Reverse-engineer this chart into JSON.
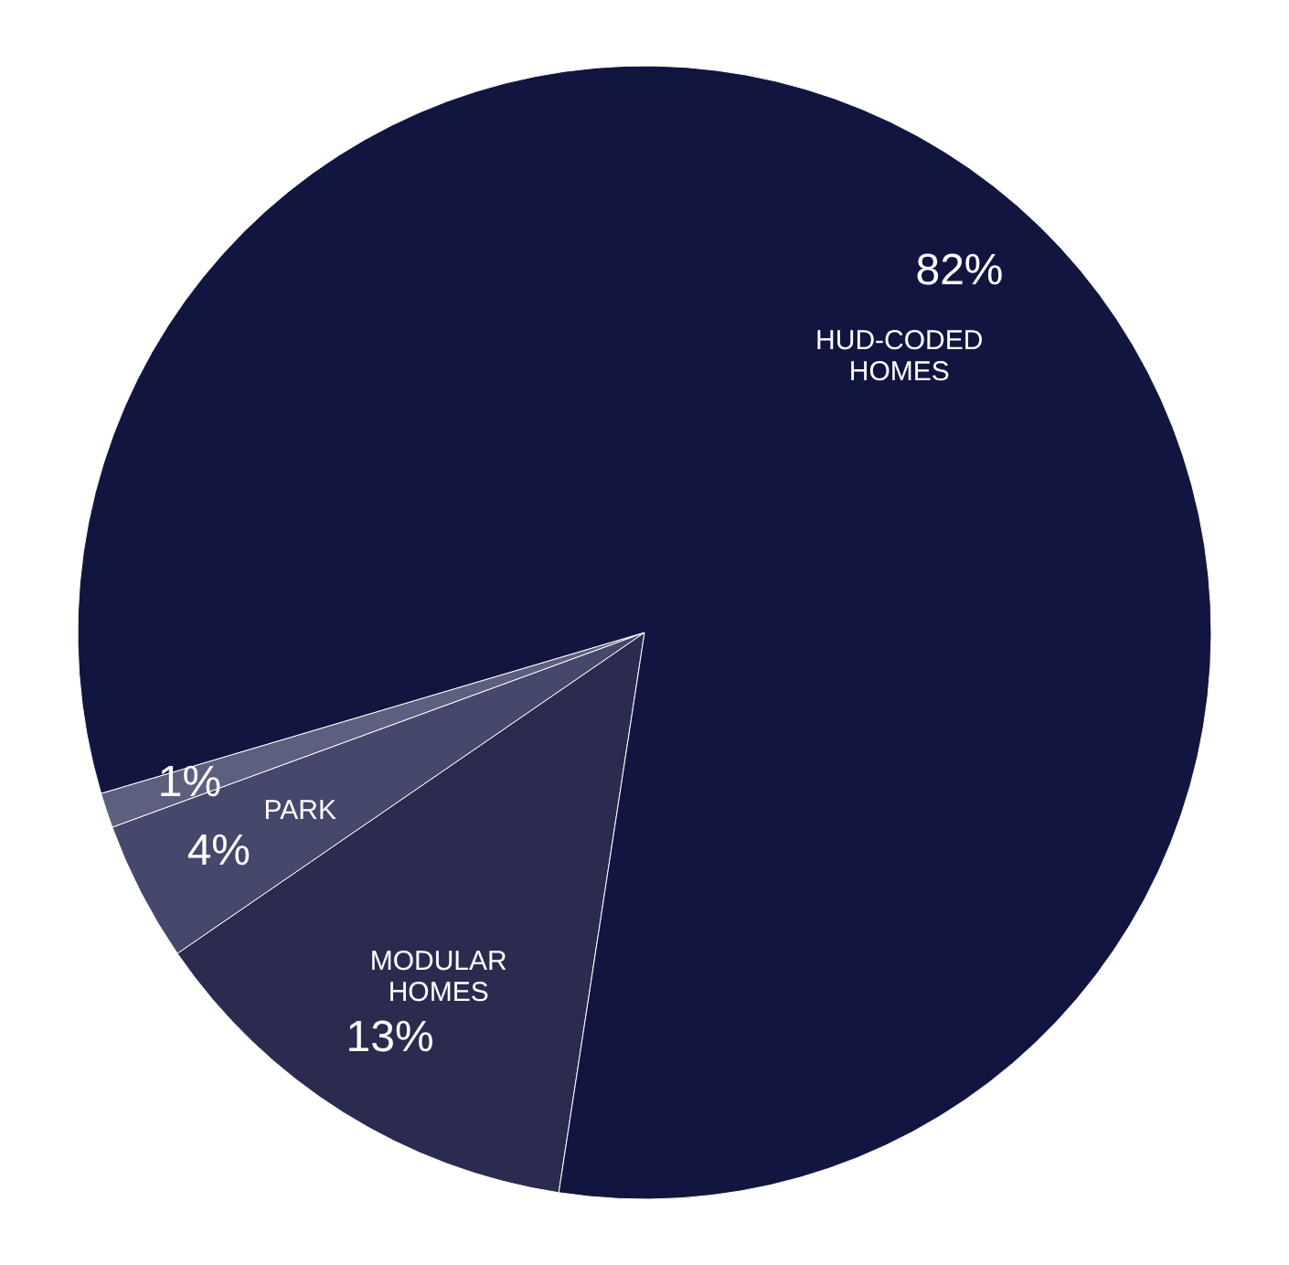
{
  "chart_data": {
    "type": "pie",
    "categories": [
      "MODULAR HOMES",
      "PARK",
      null,
      "HUD-CODED HOMES"
    ],
    "values": [
      13,
      4,
      1,
      82
    ],
    "value_labels": [
      "13%",
      "4%",
      "1%",
      "82%"
    ],
    "colors": [
      "#2b2b50",
      "#45476b",
      "#5d5f7f",
      "#12153f"
    ]
  }
}
